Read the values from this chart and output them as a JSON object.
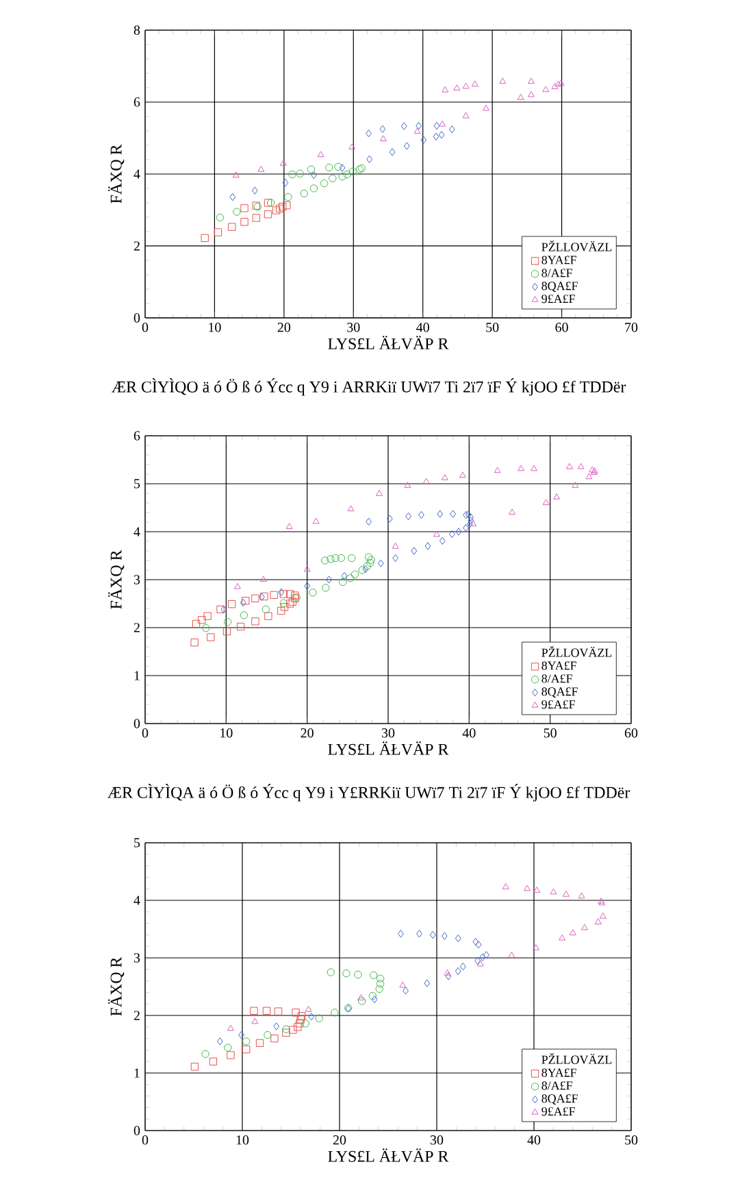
{
  "chart_data": [
    {
      "type": "scatter",
      "xlabel": "LYS£L ÄŁVÄP R",
      "ylabel": "FÄXQ R",
      "legend_title": "PŽLLOVÄZL",
      "legend": "bottom right",
      "grid": true,
      "xlim": [
        0,
        70
      ],
      "xticks": [
        0,
        10,
        20,
        30,
        40,
        50,
        60,
        70
      ],
      "ylim": [
        0,
        8
      ],
      "yticks": [
        0,
        2,
        4,
        6,
        8
      ],
      "annotations": [
        "ÆR CÌYÌQO ä ó Ö ß ó Ýcc q Y9 i ARRKiï UWï7 Ti 2ï7 ïF Ý kjOO £f TDDër"
      ],
      "series": [
        {
          "name": "8YA£F",
          "color": "#e8504a",
          "marker": "square",
          "x": [
            8.6,
            10.5,
            12.5,
            14.3,
            14.3,
            16.0,
            16.0,
            17.7,
            17.7,
            18.9,
            19.4,
            19.8,
            20.4
          ],
          "values": [
            2.22,
            2.38,
            2.53,
            2.67,
            3.05,
            2.78,
            3.12,
            2.88,
            3.2,
            2.99,
            3.04,
            3.09,
            3.13
          ]
        },
        {
          "name": "8/A£F",
          "color": "#3cb84a",
          "marker": "circle",
          "x": [
            10.8,
            13.2,
            16.2,
            18.1,
            20.6,
            21.2,
            22.3,
            22.9,
            23.9,
            24.3,
            25.8,
            26.5,
            27.0,
            27.8,
            28.4,
            29.1,
            29.9,
            30.9,
            31.2
          ],
          "values": [
            2.79,
            2.95,
            3.09,
            3.2,
            3.36,
            3.99,
            4.01,
            3.46,
            4.13,
            3.6,
            3.74,
            4.18,
            3.88,
            4.2,
            3.93,
            3.99,
            4.07,
            4.13,
            4.16
          ]
        },
        {
          "name": "8QA£F",
          "color": "#3c64c8",
          "marker": "diamond",
          "x": [
            12.6,
            15.8,
            20.2,
            24.3,
            28.4,
            32.3,
            32.2,
            34.2,
            35.6,
            37.3,
            37.7,
            39.4,
            40.1,
            41.9,
            42.0,
            42.7,
            44.2
          ],
          "values": [
            3.36,
            3.54,
            3.76,
            3.97,
            4.17,
            4.41,
            5.13,
            5.25,
            4.61,
            5.33,
            4.78,
            5.34,
            4.95,
            5.04,
            5.34,
            5.09,
            5.24
          ]
        },
        {
          "name": "9£A£F",
          "color": "#d860c0",
          "marker": "triangle",
          "x": [
            13.1,
            16.7,
            19.9,
            25.3,
            29.8,
            34.3,
            39.2,
            42.8,
            43.2,
            44.9,
            46.2,
            47.5,
            46.2,
            49.1,
            51.5,
            54.1,
            55.6,
            55.6,
            57.7,
            59.0,
            59.5,
            59.9
          ],
          "values": [
            3.96,
            4.12,
            4.29,
            4.53,
            4.74,
            4.97,
            5.18,
            5.38,
            6.33,
            6.38,
            6.43,
            6.49,
            5.61,
            5.82,
            6.57,
            6.12,
            6.57,
            6.2,
            6.34,
            6.42,
            6.49,
            6.51
          ]
        }
      ]
    },
    {
      "type": "scatter",
      "xlabel": "LYS£L ÄŁVÄP R",
      "ylabel": "FÄXQ R",
      "legend_title": "PŽLLOVÄZL",
      "legend": "bottom right",
      "grid": true,
      "xlim": [
        0,
        60
      ],
      "xticks": [
        0,
        10,
        20,
        30,
        40,
        50,
        60
      ],
      "ylim": [
        0,
        6
      ],
      "yticks": [
        0,
        1,
        2,
        3,
        4,
        5,
        6
      ],
      "annotations": [
        "ÆR CÌYÌQA ä ó Ö ß ó Ýcc q Y9 i Y£RRKiï UWï7 Ti 2ï7 ïF Ý kjOO £f TDDër"
      ],
      "series": [
        {
          "name": "8YA£F",
          "color": "#e8504a",
          "marker": "square",
          "x": [
            6.1,
            8.1,
            10.1,
            11.8,
            13.6,
            15.2,
            16.8,
            17.2,
            17.9,
            18.2,
            18.5,
            6.3,
            7.0,
            7.7,
            9.3,
            10.7,
            12.4,
            13.6,
            14.7,
            15.9,
            17.1,
            17.9,
            18.5
          ],
          "values": [
            1.69,
            1.8,
            1.92,
            2.02,
            2.13,
            2.24,
            2.35,
            2.43,
            2.5,
            2.54,
            2.61,
            2.08,
            2.16,
            2.24,
            2.38,
            2.49,
            2.56,
            2.61,
            2.65,
            2.68,
            2.7,
            2.7,
            2.67
          ]
        },
        {
          "name": "8/A£F",
          "color": "#3cb84a",
          "marker": "circle",
          "x": [
            7.5,
            10.2,
            12.2,
            14.9,
            17.1,
            18.7,
            20.7,
            22.3,
            24.4,
            25.3,
            25.9,
            26.8,
            27.4,
            27.8,
            27.9,
            27.6,
            22.2,
            22.9,
            23.5,
            24.2,
            25.5
          ],
          "values": [
            1.99,
            2.12,
            2.26,
            2.38,
            2.51,
            2.63,
            2.73,
            2.83,
            2.95,
            3.03,
            3.11,
            3.2,
            3.28,
            3.35,
            3.41,
            3.47,
            3.4,
            3.43,
            3.45,
            3.45,
            3.45
          ]
        },
        {
          "name": "8QA£F",
          "color": "#3c64c8",
          "marker": "diamond",
          "x": [
            9.7,
            12.1,
            14.4,
            16.8,
            20.0,
            22.7,
            24.6,
            27.2,
            29.1,
            30.9,
            33.2,
            34.9,
            36.7,
            37.9,
            38.7,
            39.6,
            40.1,
            40.2,
            40.2,
            39.9,
            39.6,
            38.0,
            36.4,
            34.1,
            32.5,
            30.2,
            27.6
          ],
          "values": [
            2.38,
            2.52,
            2.64,
            2.74,
            2.87,
            3.0,
            3.08,
            3.22,
            3.34,
            3.45,
            3.6,
            3.7,
            3.81,
            3.95,
            4.0,
            4.08,
            4.16,
            4.23,
            4.3,
            4.36,
            4.35,
            4.37,
            4.37,
            4.35,
            4.32,
            4.27,
            4.21
          ]
        },
        {
          "name": "9£A£F",
          "color": "#d860c0",
          "marker": "triangle",
          "x": [
            11.4,
            14.6,
            17.8,
            20.0,
            21.1,
            25.4,
            28.9,
            30.9,
            32.4,
            34.7,
            36.0,
            37.0,
            39.2,
            40.5,
            43.5,
            45.3,
            46.4,
            48.0,
            49.5,
            50.8,
            52.4,
            53.1,
            53.8,
            54.8,
            55.2,
            55.4,
            55.5
          ],
          "values": [
            2.85,
            3.0,
            4.1,
            3.21,
            4.21,
            4.47,
            4.79,
            3.69,
            4.96,
            5.04,
            3.94,
            5.12,
            5.17,
            4.16,
            5.27,
            4.4,
            5.31,
            5.31,
            4.6,
            4.72,
            5.35,
            4.96,
            5.35,
            5.14,
            5.28,
            5.23,
            5.26
          ]
        }
      ]
    },
    {
      "type": "scatter",
      "xlabel": "LYS£L ÄŁVÄP R",
      "ylabel": "FÄXQ R",
      "legend_title": "PŽLLOVÄZL",
      "legend": "bottom right",
      "grid": true,
      "xlim": [
        0,
        50
      ],
      "xticks": [
        0,
        10,
        20,
        30,
        40,
        50
      ],
      "ylim": [
        0,
        5
      ],
      "yticks": [
        0,
        1,
        2,
        3,
        4,
        5
      ],
      "series": [
        {
          "name": "8YA£F",
          "color": "#e8504a",
          "marker": "square",
          "x": [
            5.1,
            7.0,
            8.8,
            10.4,
            11.8,
            13.3,
            14.5,
            15.2,
            15.7,
            15.9,
            16.0,
            16.1,
            15.5,
            13.7,
            12.5,
            11.2
          ],
          "values": [
            1.11,
            1.2,
            1.31,
            1.41,
            1.52,
            1.6,
            1.7,
            1.75,
            1.8,
            1.86,
            1.93,
            1.99,
            2.05,
            2.07,
            2.08,
            2.08
          ]
        },
        {
          "name": "8/A£F",
          "color": "#3cb84a",
          "marker": "circle",
          "x": [
            6.2,
            8.5,
            10.4,
            12.6,
            14.5,
            16.5,
            17.9,
            19.5,
            20.9,
            22.3,
            23.4,
            24.1,
            24.2,
            24.2,
            23.5,
            21.9,
            20.7,
            19.1
          ],
          "values": [
            1.33,
            1.44,
            1.55,
            1.66,
            1.76,
            1.86,
            1.95,
            2.05,
            2.13,
            2.25,
            2.34,
            2.46,
            2.55,
            2.64,
            2.7,
            2.71,
            2.73,
            2.75
          ]
        },
        {
          "name": "8QA£F",
          "color": "#3c64c8",
          "marker": "diamond",
          "x": [
            7.7,
            9.9,
            13.5,
            17.1,
            20.9,
            23.6,
            26.8,
            29.0,
            31.2,
            32.2,
            32.7,
            34.2,
            34.7,
            35.1,
            34.3,
            34.0,
            32.2,
            30.8,
            29.6,
            28.2,
            26.3
          ],
          "values": [
            1.55,
            1.66,
            1.81,
            1.98,
            2.12,
            2.28,
            2.43,
            2.56,
            2.68,
            2.77,
            2.85,
            2.95,
            3.01,
            3.05,
            3.23,
            3.28,
            3.34,
            3.38,
            3.4,
            3.42,
            3.42
          ]
        },
        {
          "name": "9£A£F",
          "color": "#d860c0",
          "marker": "triangle",
          "x": [
            8.8,
            11.3,
            16.8,
            22.2,
            26.5,
            31.1,
            34.5,
            37.7,
            40.2,
            42.9,
            44.0,
            45.2,
            46.6,
            47.1,
            47.0,
            46.9,
            44.9,
            43.3,
            42.0,
            40.3,
            39.3,
            37.1
          ],
          "values": [
            1.77,
            1.89,
            2.1,
            2.3,
            2.52,
            2.73,
            2.89,
            3.04,
            3.17,
            3.34,
            3.43,
            3.52,
            3.62,
            3.72,
            3.95,
            3.98,
            4.07,
            4.1,
            4.14,
            4.17,
            4.2,
            4.23
          ]
        }
      ]
    }
  ]
}
